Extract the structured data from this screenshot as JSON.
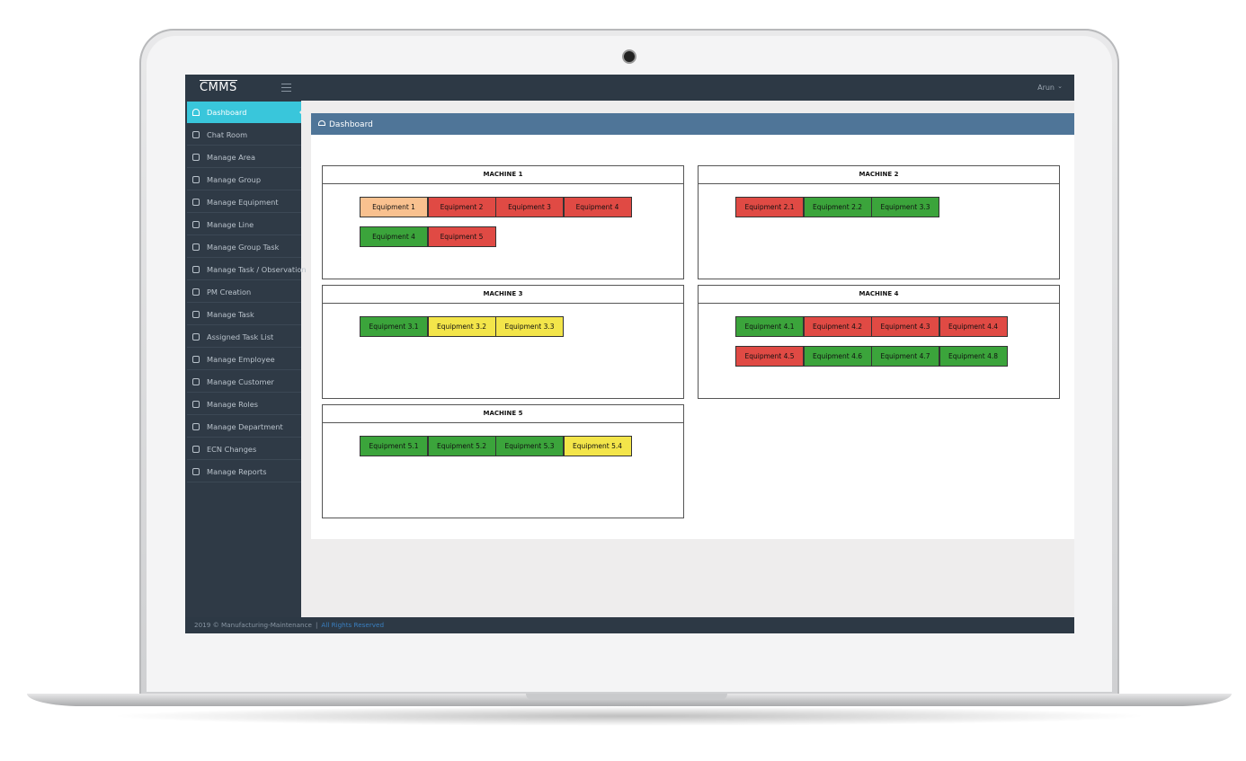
{
  "header": {
    "logo": "CMMS",
    "user": "Arun"
  },
  "sidebar": [
    "Dashboard",
    "Chat Room",
    "Manage Area",
    "Manage Group",
    "Manage Equipment",
    "Manage Line",
    "Manage Group Task",
    "Manage Task / Observation",
    "PM Creation",
    "Manage Task",
    "Assigned Task List",
    "Manage Employee",
    "Manage Customer",
    "Manage Roles",
    "Manage Department",
    "ECN Changes",
    "Manage Reports"
  ],
  "panel": {
    "title": "Dashboard"
  },
  "machines": [
    {
      "title": "MACHINE 1",
      "equipment": [
        {
          "label": "Equipment 1",
          "color": "#f9c18f"
        },
        {
          "label": "Equipment 2",
          "color": "#e04a44"
        },
        {
          "label": "Equipment 3",
          "color": "#e04a44"
        },
        {
          "label": "Equipment 4",
          "color": "#e04a44"
        },
        {
          "label": "Equipment 4",
          "color": "#3ba43b"
        },
        {
          "label": "Equipment 5",
          "color": "#e04a44"
        }
      ]
    },
    {
      "title": "MACHINE 2",
      "equipment": [
        {
          "label": "Equipment 2.1",
          "color": "#e04a44"
        },
        {
          "label": "Equipment 2.2",
          "color": "#3ba43b"
        },
        {
          "label": "Equipment 3.3",
          "color": "#3ba43b"
        }
      ]
    },
    {
      "title": "MACHINE 3",
      "equipment": [
        {
          "label": "Equipment 3.1",
          "color": "#3ba43b"
        },
        {
          "label": "Equipment 3.2",
          "color": "#f3e54a"
        },
        {
          "label": "Equipment 3.3",
          "color": "#f3e54a"
        }
      ]
    },
    {
      "title": "MACHINE 4",
      "equipment": [
        {
          "label": "Equipment 4.1",
          "color": "#3ba43b"
        },
        {
          "label": "Equipment 4.2",
          "color": "#e04a44"
        },
        {
          "label": "Equipment 4.3",
          "color": "#e04a44"
        },
        {
          "label": "Equipment 4.4",
          "color": "#e04a44"
        },
        {
          "label": "Equipment 4.5",
          "color": "#e04a44"
        },
        {
          "label": "Equipment 4.6",
          "color": "#3ba43b"
        },
        {
          "label": "Equipment 4.7",
          "color": "#3ba43b"
        },
        {
          "label": "Equipment 4.8",
          "color": "#3ba43b"
        }
      ]
    },
    {
      "title": "MACHINE 5",
      "equipment": [
        {
          "label": "Equipment 5.1",
          "color": "#3ba43b"
        },
        {
          "label": "Equipment 5.2",
          "color": "#3ba43b"
        },
        {
          "label": "Equipment 5.3",
          "color": "#3ba43b"
        },
        {
          "label": "Equipment 5.4",
          "color": "#f3e54a"
        }
      ]
    }
  ],
  "footer": {
    "copyright": "2019 © Manufacturing-Maintenance",
    "separator": "|",
    "rights": "All Rights Reserved"
  }
}
